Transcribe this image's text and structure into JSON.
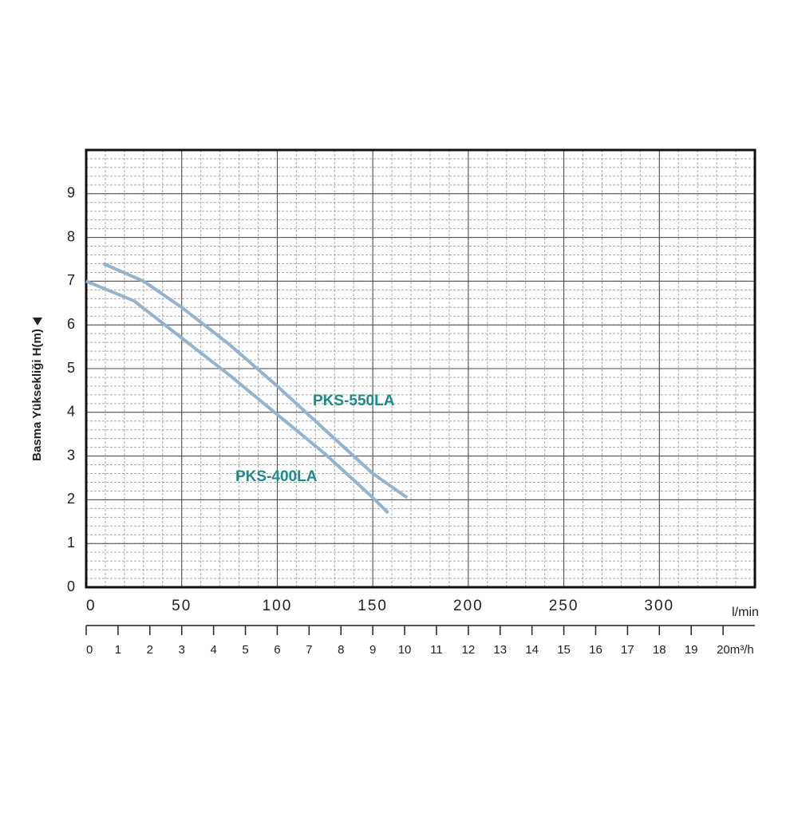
{
  "chart_data": {
    "type": "line",
    "y_label": "Basma Yüksekliği H(m)",
    "x_unit": "l/min",
    "xlim": [
      0,
      350
    ],
    "ylim": [
      0,
      10
    ],
    "xticks": [
      0,
      50,
      100,
      150,
      200,
      250,
      300
    ],
    "yticks": [
      0,
      1,
      2,
      3,
      4,
      5,
      6,
      7,
      8,
      9
    ],
    "x2lim": [
      0,
      21
    ],
    "x2ticks": [
      0,
      1,
      2,
      3,
      4,
      5,
      6,
      7,
      8,
      9,
      10,
      11,
      12,
      13,
      14,
      15,
      16,
      17,
      18,
      19,
      {
        "value": 20,
        "label": "20m³/h"
      }
    ],
    "grid": true,
    "series": [
      {
        "name": "PKS-550LA",
        "color": "#93b3cf",
        "label_color": "#1f8a8c",
        "x": [
          9,
          30,
          50,
          75,
          100,
          125,
          150,
          168
        ],
        "values": [
          7.4,
          7.0,
          6.4,
          5.55,
          4.6,
          3.6,
          2.6,
          2.05
        ]
      },
      {
        "name": "PKS-400LA",
        "color": "#93b3cf",
        "label_color": "#1f8a8c",
        "x": [
          0,
          25,
          50,
          75,
          100,
          125,
          150,
          158
        ],
        "values": [
          7.0,
          6.55,
          5.7,
          4.85,
          3.95,
          3.05,
          2.05,
          1.7
        ]
      }
    ]
  }
}
